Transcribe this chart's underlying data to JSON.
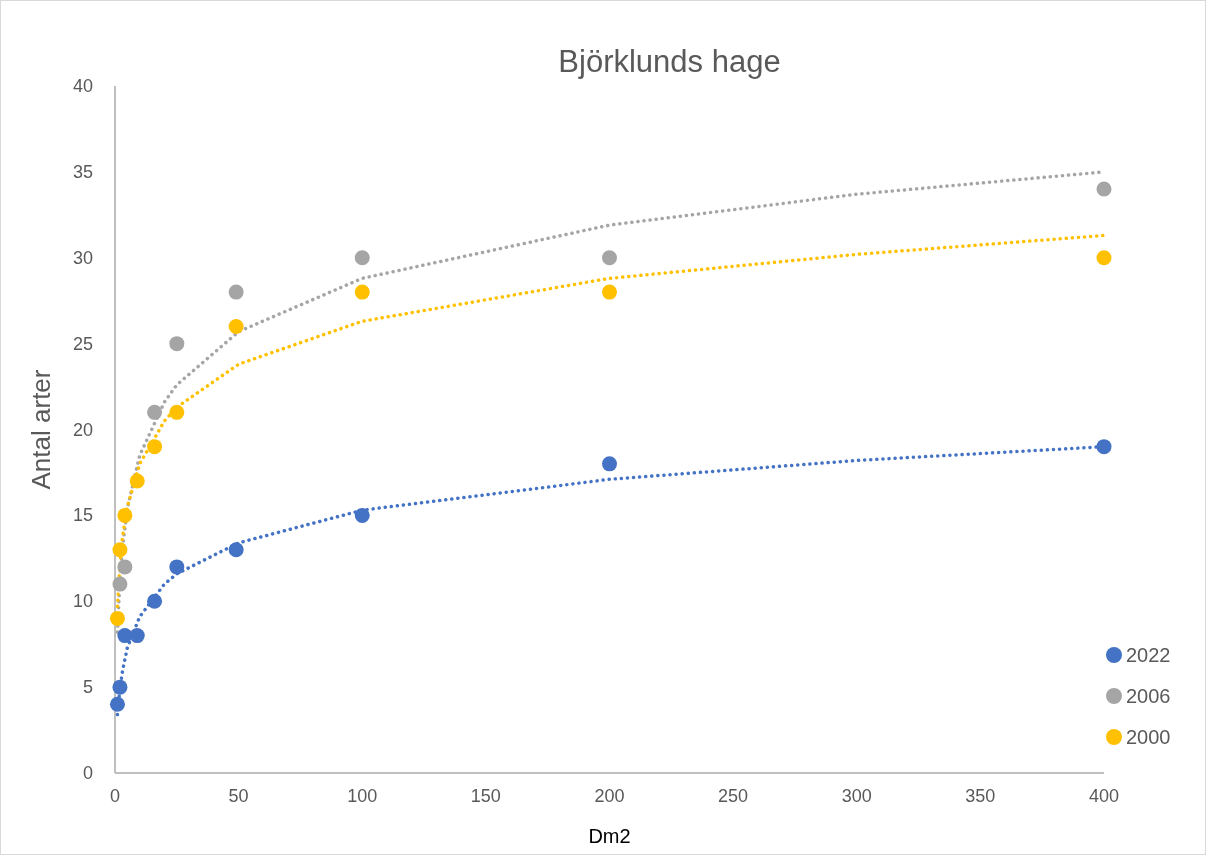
{
  "chart_data": {
    "type": "scatter",
    "title": "Björklunds hage",
    "xlabel": "Dm2",
    "ylabel": "Antal arter",
    "xlim": [
      0,
      400
    ],
    "xticks": [
      0,
      50,
      100,
      150,
      200,
      250,
      300,
      350,
      400
    ],
    "ylim": [
      0,
      40
    ],
    "yticks": [
      0,
      5,
      10,
      15,
      20,
      25,
      30,
      35,
      40
    ],
    "grid": false,
    "legend": "bottom right",
    "marker": "circle",
    "series": [
      {
        "type": "line",
        "color": "#a5a5a5",
        "line_style": "dotted",
        "marker": "none",
        "x": [
          1,
          2,
          3,
          5,
          10,
          20,
          25,
          50,
          100,
          200,
          300,
          400
        ],
        "values": [
          8.2,
          11.3,
          13.1,
          15.4,
          18.5,
          21.6,
          22.6,
          25.7,
          28.8,
          31.9,
          33.7,
          35
        ]
      },
      {
        "type": "line",
        "color": "#ffc000",
        "line_style": "dotted",
        "marker": "none",
        "x": [
          1,
          2,
          3,
          5,
          10,
          20,
          25,
          50,
          100,
          200,
          300,
          400
        ],
        "values": [
          9.7,
          12.2,
          13.7,
          15.5,
          18,
          20.5,
          21.3,
          23.8,
          26.3,
          28.8,
          30.2,
          31.3
        ]
      },
      {
        "type": "line",
        "color": "#4472c4",
        "line_style": "dotted",
        "marker": "none",
        "x": [
          1,
          2,
          3,
          5,
          10,
          20,
          25,
          50,
          100,
          200,
          300,
          400
        ],
        "values": [
          3.4,
          4.9,
          5.9,
          7.3,
          9.1,
          11,
          11.6,
          13.4,
          15.3,
          17.1,
          18.2,
          19
        ]
      },
      {
        "name": "2022",
        "color": "#4472c4",
        "x": [
          1,
          2,
          4,
          9,
          16,
          25,
          49,
          100,
          200,
          400
        ],
        "values": [
          4,
          5,
          8,
          8,
          10,
          12,
          13,
          15,
          18,
          19
        ]
      },
      {
        "name": "2006",
        "color": "#a5a5a5",
        "x": [
          2,
          4,
          16,
          25,
          49,
          100,
          200,
          400
        ],
        "values": [
          11,
          12,
          21,
          25,
          28,
          30,
          30,
          34
        ]
      },
      {
        "name": "2000",
        "color": "#ffc000",
        "x": [
          1,
          2,
          4,
          9,
          16,
          25,
          49,
          100,
          200,
          400
        ],
        "values": [
          9,
          13,
          15,
          17,
          19,
          21,
          26,
          28,
          28,
          30
        ]
      }
    ]
  }
}
